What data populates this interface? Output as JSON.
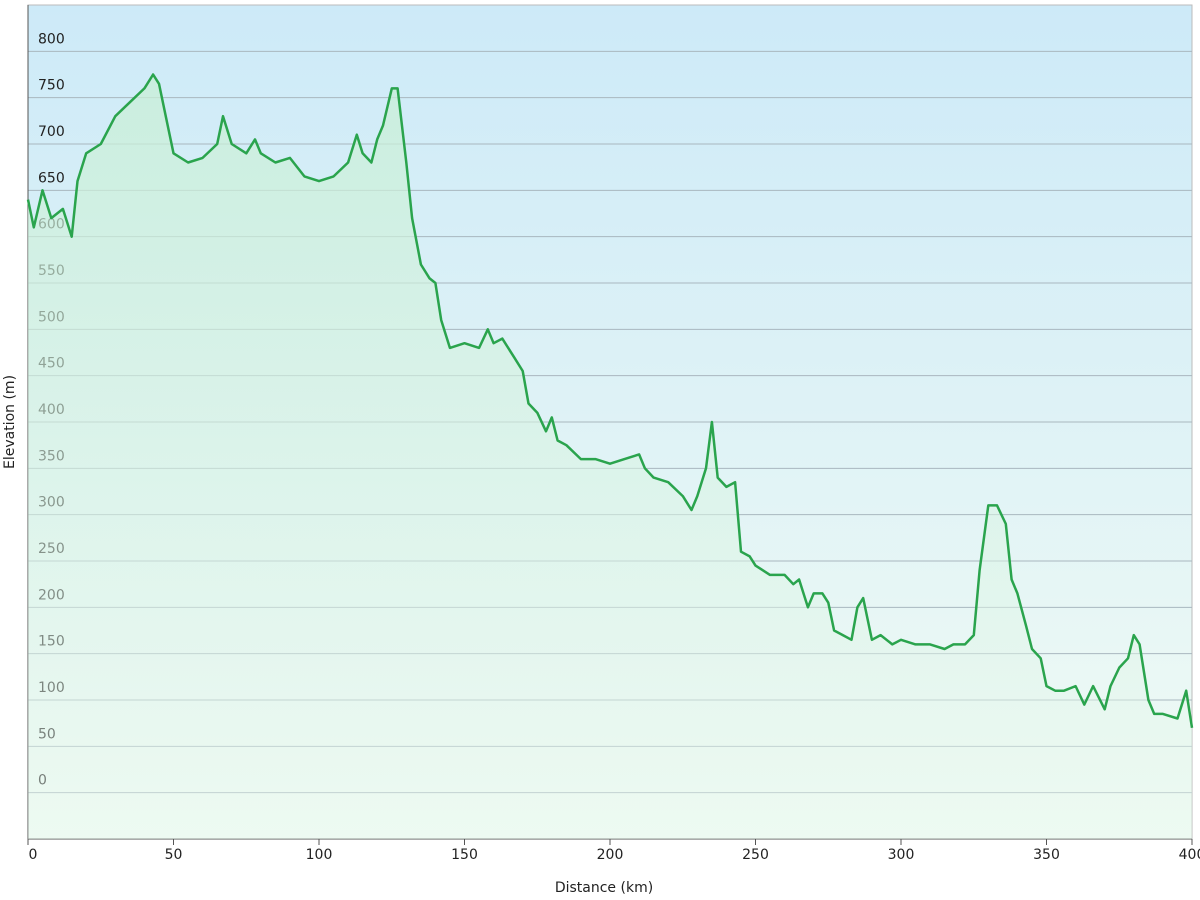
{
  "chart_data": {
    "type": "line",
    "x_label": "Distance  (km)",
    "y_label": "Elevation (m)",
    "color": "#2aa44d",
    "x": [
      0,
      2,
      5,
      8,
      12,
      15,
      17,
      20,
      25,
      30,
      35,
      40,
      43,
      45,
      48,
      50,
      55,
      60,
      65,
      67,
      70,
      75,
      78,
      80,
      85,
      90,
      95,
      100,
      105,
      110,
      113,
      115,
      118,
      120,
      122,
      125,
      127,
      130,
      132,
      135,
      138,
      140,
      142,
      145,
      150,
      155,
      158,
      160,
      163,
      167,
      170,
      172,
      175,
      178,
      180,
      182,
      185,
      190,
      195,
      200,
      205,
      210,
      212,
      215,
      220,
      225,
      228,
      230,
      233,
      235,
      237,
      240,
      243,
      245,
      248,
      250,
      255,
      260,
      263,
      265,
      268,
      270,
      273,
      275,
      277,
      280,
      283,
      285,
      287,
      290,
      293,
      297,
      300,
      305,
      310,
      315,
      318,
      322,
      325,
      327,
      330,
      333,
      336,
      338,
      340,
      343,
      345,
      348,
      350,
      353,
      356,
      360,
      363,
      366,
      370,
      372,
      375,
      378,
      380,
      382,
      385,
      387,
      390,
      395,
      398,
      400
    ],
    "values": [
      640,
      610,
      650,
      620,
      630,
      600,
      660,
      690,
      700,
      730,
      745,
      760,
      775,
      765,
      720,
      690,
      680,
      685,
      700,
      730,
      700,
      690,
      705,
      690,
      680,
      685,
      665,
      660,
      665,
      680,
      710,
      690,
      680,
      705,
      720,
      760,
      760,
      680,
      620,
      570,
      555,
      550,
      510,
      480,
      485,
      480,
      500,
      485,
      490,
      470,
      455,
      420,
      410,
      390,
      405,
      380,
      375,
      360,
      360,
      355,
      360,
      365,
      350,
      340,
      335,
      320,
      305,
      320,
      350,
      400,
      340,
      330,
      335,
      260,
      255,
      245,
      235,
      235,
      225,
      230,
      200,
      215,
      215,
      205,
      175,
      170,
      165,
      200,
      210,
      165,
      170,
      160,
      165,
      160,
      160,
      155,
      160,
      160,
      170,
      240,
      310,
      310,
      290,
      230,
      215,
      180,
      155,
      145,
      115,
      110,
      110,
      115,
      95,
      115,
      90,
      115,
      135,
      145,
      170,
      160,
      100,
      85,
      85,
      80,
      110,
      70
    ],
    "xlim": [
      0,
      400
    ],
    "xticks": [
      0,
      50,
      100,
      150,
      200,
      250,
      300,
      350,
      400
    ],
    "ylim": [
      -50,
      850
    ],
    "yticks": [
      0,
      50,
      100,
      150,
      200,
      250,
      300,
      350,
      400,
      450,
      500,
      550,
      600,
      650,
      700,
      750,
      800
    ],
    "grid": true
  }
}
